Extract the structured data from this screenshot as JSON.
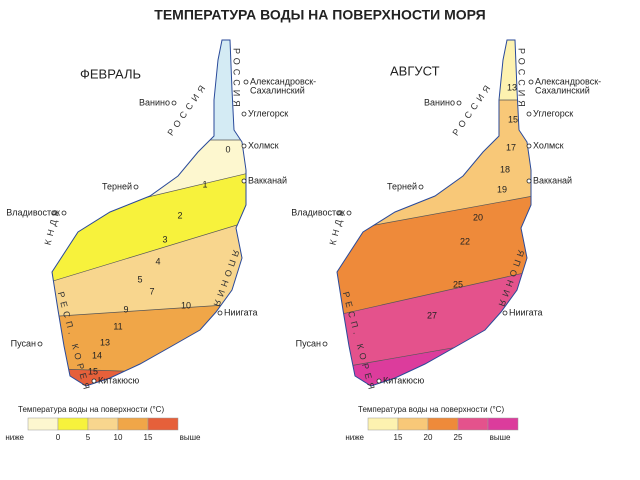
{
  "title": "ТЕМПЕРАТУРА ВОДЫ НА ПОВЕРХНОСТИ МОРЯ",
  "maps": [
    {
      "label": "ФЕВРАЛЬ",
      "ice_color": "#d4ebf4",
      "cities": [
        [
          "Александровск-",
          "Сахалинский"
        ],
        [
          "Ванино"
        ],
        [
          "Углегорск"
        ],
        [
          "Холмск"
        ],
        [
          "Терней"
        ],
        [
          "Вакканай"
        ],
        [
          "Владивосток"
        ],
        [
          "Ниигата"
        ],
        [
          "Пусан"
        ],
        [
          "Китакюсю"
        ]
      ],
      "regions": [
        "РОССИЯ",
        "РОССИЯ",
        "КНДР",
        "РЕСП. КОРЕЯ",
        "ЯПОНИЯ"
      ],
      "isotherms": [
        "0",
        "1",
        "2",
        "3",
        "4",
        "5",
        "7",
        "9",
        "10",
        "11",
        "13",
        "14",
        "15"
      ],
      "legend": {
        "title": "Температура воды на поверхности (°C)",
        "ticks": [
          "ниже",
          "0",
          "5",
          "10",
          "15",
          "выше"
        ],
        "colors": [
          "#fdf7cf",
          "#f7f23c",
          "#f8d68e",
          "#f0a648",
          "#e6603a"
        ]
      }
    },
    {
      "label": "АВГУСТ",
      "cities": [
        [
          "Александровск-",
          "Сахалинский"
        ],
        [
          "Ванино"
        ],
        [
          "Углегорск"
        ],
        [
          "Холмск"
        ],
        [
          "Терней"
        ],
        [
          "Вакканай"
        ],
        [
          "Владивосток"
        ],
        [
          "Ниигата"
        ],
        [
          "Пусан"
        ],
        [
          "Китакюсю"
        ]
      ],
      "regions": [
        "РОССИЯ",
        "РОССИЯ",
        "КНДР",
        "РЕСП. КОРЕЯ",
        "ЯПОНИЯ"
      ],
      "isotherms": [
        "13",
        "15",
        "17",
        "18",
        "19",
        "20",
        "22",
        "25",
        "27"
      ],
      "legend": {
        "title": "Температура воды на поверхности (°C)",
        "ticks": [
          "ниже",
          "15",
          "20",
          "25",
          "выше"
        ],
        "colors": [
          "#fdf2b0",
          "#f8c878",
          "#ee8a3a",
          "#e4528c",
          "#dc3c9c"
        ]
      }
    }
  ]
}
